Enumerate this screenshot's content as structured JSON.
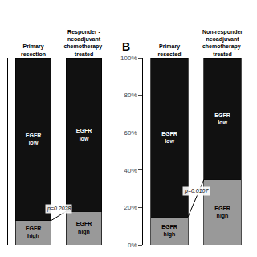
{
  "chart_data": [
    {
      "type": "bar",
      "stacked": true,
      "grid": false,
      "tick_labels": "x",
      "categories": [
        "Primary\nresection",
        "Responder -\nneoadjuvant\nchemotherapy-\ntreated"
      ],
      "series": [
        {
          "name": "EGFR\nhigh",
          "color": "#999999",
          "values": [
            13,
            18
          ]
        },
        {
          "name": "EGFR\nlow",
          "color": "#111111",
          "values": [
            87,
            82
          ]
        }
      ],
      "ylim": [
        0,
        100
      ],
      "annotations": [
        "p=0.2028"
      ]
    },
    {
      "type": "bar",
      "stacked": true,
      "grid": false,
      "title": "B",
      "categories": [
        "Primary\nresected",
        "Non-responder\nneoadjuvant\nchemotherapy-\ntreated"
      ],
      "series": [
        {
          "name": "EGFR\nhigh",
          "color": "#999999",
          "values": [
            15,
            35
          ]
        },
        {
          "name": "EGFR\nlow",
          "color": "#111111",
          "values": [
            85,
            65
          ]
        }
      ],
      "ylim": [
        0,
        100
      ],
      "yticks": [
        {
          "value": 0,
          "label": "0%"
        },
        {
          "value": 20,
          "label": "20%"
        },
        {
          "value": 40,
          "label": "40%"
        },
        {
          "value": 60,
          "label": "60%"
        },
        {
          "value": 80,
          "label": "80%"
        },
        {
          "value": 100,
          "label": "100%"
        }
      ],
      "annotations": [
        "p=0.0107"
      ]
    }
  ]
}
